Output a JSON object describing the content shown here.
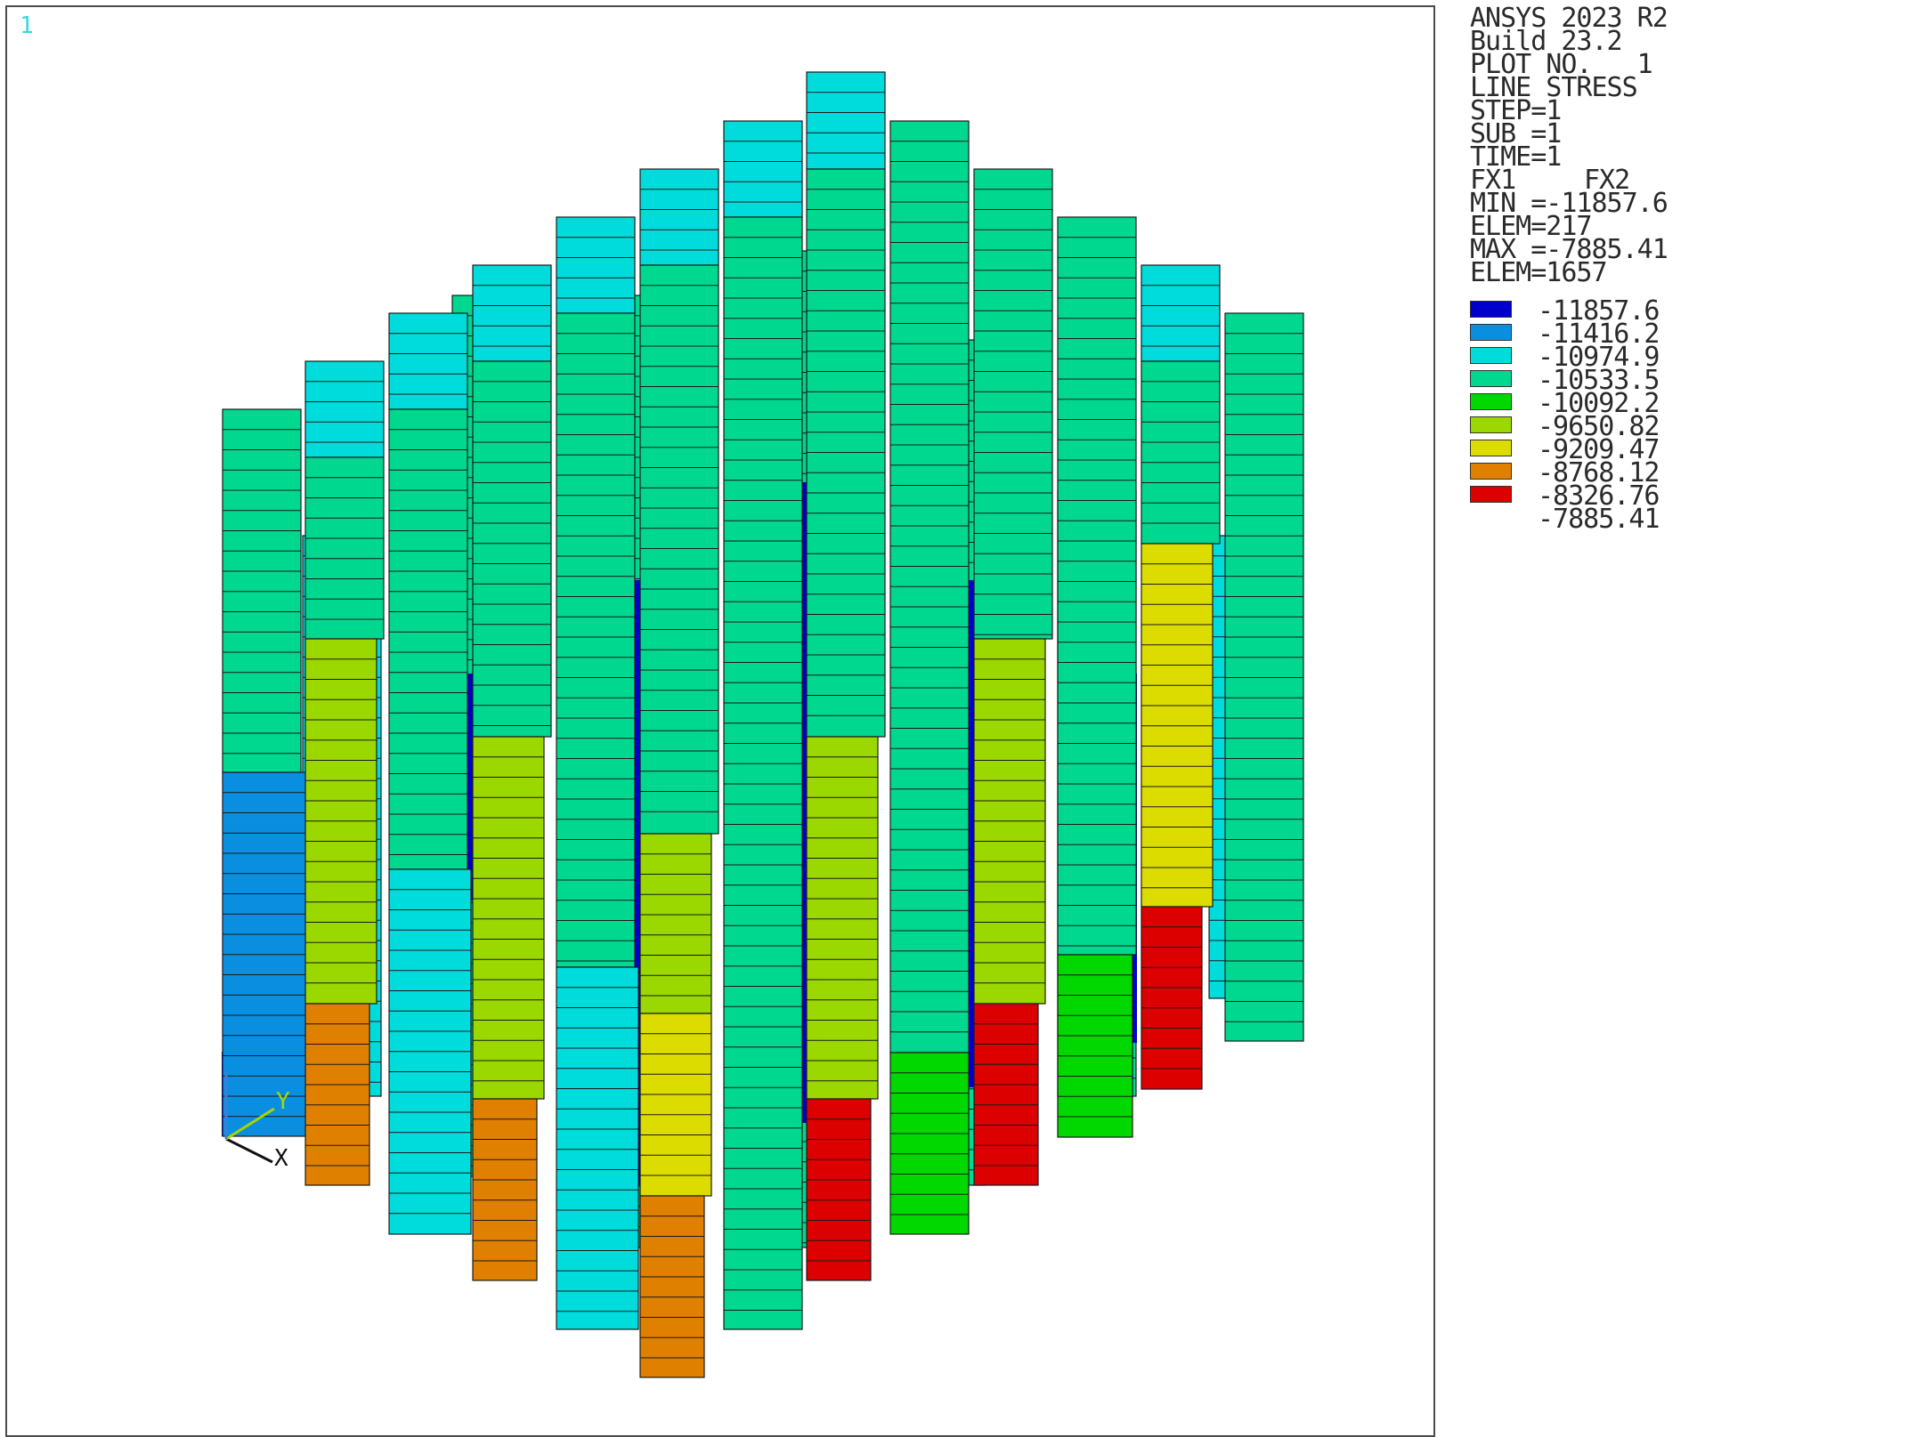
{
  "window_number": "1",
  "info": {
    "product": "ANSYS 2023 R2",
    "build": "Build 23.2",
    "plot_no": "PLOT NO.   1",
    "plot_type": "LINE STRESS",
    "step": "STEP=1",
    "sub": "SUB =1",
    "time": "TIME=1",
    "fx1": "FX1",
    "fx2": "FX2",
    "min": "MIN =-11857.6",
    "min_elem": "ELEM=217",
    "max": "MAX =-7885.41",
    "max_elem": "ELEM=1657"
  },
  "legend": [
    {
      "value": "-11857.6",
      "color": "#0000cc"
    },
    {
      "value": "-11416.2",
      "color": "#0a8fe0"
    },
    {
      "value": "-10974.9",
      "color": "#00dcdc"
    },
    {
      "value": "-10533.5",
      "color": "#00d890"
    },
    {
      "value": "-10092.2",
      "color": "#00d800"
    },
    {
      "value": "-9650.82",
      "color": "#9ad800"
    },
    {
      "value": "-9209.47",
      "color": "#dcdc00"
    },
    {
      "value": "-8768.12",
      "color": "#e08000"
    },
    {
      "value": "-8326.76",
      "color": "#dc0000"
    },
    {
      "value": "-7885.41",
      "color": "#dc0000"
    }
  ],
  "triad": {
    "x_label": "X",
    "y_label": "Y"
  },
  "colors": {
    "dark_blue": "#0000cc",
    "blue": "#0a8fe0",
    "cyan": "#00dcdc",
    "teal_green": "#00d890",
    "green": "#00d800",
    "yellow_green": "#9ad800",
    "yellow": "#dcdc00",
    "orange": "#e08000",
    "red": "#dc0000"
  }
}
